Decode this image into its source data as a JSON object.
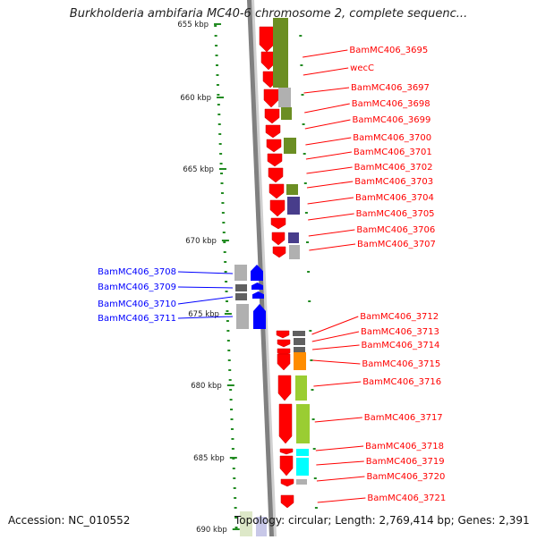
{
  "title": "Burkholderia ambifaria MC40-6 chromosome 2, complete sequenc...",
  "footer": {
    "accession": "Accession: NC_010552",
    "summary": "Topology: circular; Length: 2,769,414 bp; Genes: 2,391"
  },
  "colors": {
    "reverse_strand": "#ff0000",
    "forward_strand": "#0000ff",
    "backbone": "#808080",
    "tick": "#228b22",
    "cog_olive": "#6b8e23",
    "cog_navy": "#483d8b",
    "cog_orange": "#ff8c00",
    "cog_lime": "#9acd32",
    "cog_cyan": "#00ffff",
    "cog_gray": "#b0b0b0"
  },
  "scale": {
    "unit": "kbp",
    "labels": [
      "655 kbp",
      "660 kbp",
      "665 kbp",
      "670 kbp",
      "675 kbp",
      "680 kbp",
      "685 kbp",
      "690 kbp"
    ]
  },
  "genes_reverse": [
    "BamMC406_3695",
    "wecC",
    "BamMC406_3697",
    "BamMC406_3698",
    "BamMC406_3699",
    "BamMC406_3700",
    "BamMC406_3701",
    "BamMC406_3702",
    "BamMC406_3703",
    "BamMC406_3704",
    "BamMC406_3705",
    "BamMC406_3706",
    "BamMC406_3707",
    "BamMC406_3712",
    "BamMC406_3713",
    "BamMC406_3714",
    "BamMC406_3715",
    "BamMC406_3716",
    "BamMC406_3717",
    "BamMC406_3718",
    "BamMC406_3719",
    "BamMC406_3720",
    "BamMC406_3721"
  ],
  "genes_forward": [
    "BamMC406_3708",
    "BamMC406_3709",
    "BamMC406_3710",
    "BamMC406_3711"
  ]
}
